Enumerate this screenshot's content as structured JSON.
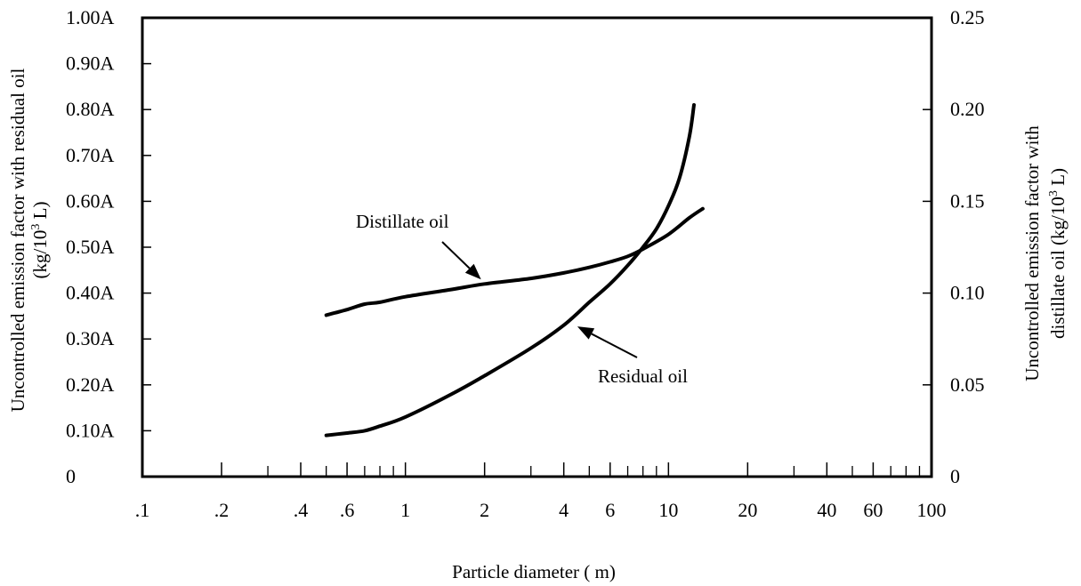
{
  "chart_data": {
    "type": "line",
    "x_scale": "log",
    "xlim": [
      0.1,
      100
    ],
    "ylim_left": [
      0,
      1.0
    ],
    "ylim_right": [
      0,
      0.25
    ],
    "grid": false,
    "xlabel": "Particle diameter (   m)",
    "ylabel_left": {
      "line1": "Uncontrolled emission factor with residual oil",
      "line2_pre": "(kg/10",
      "line2_sup": "3",
      "line2_post": " L)"
    },
    "ylabel_right": {
      "line1": "Uncontrolled emission factor with",
      "line2_pre": "distillate oil (kg/10",
      "line2_sup": "3",
      "line2_post": " L)"
    },
    "x_ticks": [
      {
        "value": 0.1,
        "label": ".1"
      },
      {
        "value": 0.2,
        "label": ".2"
      },
      {
        "value": 0.4,
        "label": ".4"
      },
      {
        "value": 0.6,
        "label": ".6"
      },
      {
        "value": 1,
        "label": "1"
      },
      {
        "value": 2,
        "label": "2"
      },
      {
        "value": 4,
        "label": "4"
      },
      {
        "value": 6,
        "label": "6"
      },
      {
        "value": 10,
        "label": "10"
      },
      {
        "value": 20,
        "label": "20"
      },
      {
        "value": 40,
        "label": "40"
      },
      {
        "value": 60,
        "label": "60"
      },
      {
        "value": 100,
        "label": "100"
      }
    ],
    "x_minor_ticks": [
      0.3,
      0.5,
      0.7,
      0.8,
      0.9,
      3,
      5,
      7,
      8,
      9,
      30,
      50,
      70,
      80,
      90
    ],
    "y_left_ticks": [
      {
        "value": 0,
        "label": "0"
      },
      {
        "value": 0.1,
        "label": "0.10A"
      },
      {
        "value": 0.2,
        "label": "0.20A"
      },
      {
        "value": 0.3,
        "label": "0.30A"
      },
      {
        "value": 0.4,
        "label": "0.40A"
      },
      {
        "value": 0.5,
        "label": "0.50A"
      },
      {
        "value": 0.6,
        "label": "0.60A"
      },
      {
        "value": 0.7,
        "label": "0.70A"
      },
      {
        "value": 0.8,
        "label": "0.80A"
      },
      {
        "value": 0.9,
        "label": "0.90A"
      },
      {
        "value": 1.0,
        "label": "1.00A"
      }
    ],
    "y_right_ticks": [
      {
        "value": 0,
        "label": "0"
      },
      {
        "value": 0.05,
        "label": "0.05"
      },
      {
        "value": 0.1,
        "label": "0.10"
      },
      {
        "value": 0.15,
        "label": "0.15"
      },
      {
        "value": 0.2,
        "label": "0.20"
      },
      {
        "value": 0.25,
        "label": "0.25"
      }
    ],
    "series": [
      {
        "name": "Distillate oil",
        "axis": "right",
        "x": [
          0.5,
          0.6,
          0.7,
          0.8,
          1.0,
          1.5,
          2,
          3,
          4,
          5,
          6,
          7,
          8,
          10,
          12,
          13.5
        ],
        "y": [
          0.088,
          0.091,
          0.094,
          0.095,
          0.098,
          0.102,
          0.105,
          0.108,
          0.111,
          0.114,
          0.117,
          0.12,
          0.124,
          0.132,
          0.141,
          0.146
        ]
      },
      {
        "name": "Residual oil",
        "axis": "left",
        "x": [
          0.5,
          0.6,
          0.7,
          0.8,
          1.0,
          1.5,
          2,
          3,
          4,
          5,
          6,
          7,
          8,
          9,
          10,
          11,
          12,
          12.5
        ],
        "y": [
          0.09,
          0.095,
          0.1,
          0.11,
          0.13,
          0.18,
          0.22,
          0.28,
          0.33,
          0.38,
          0.42,
          0.46,
          0.5,
          0.54,
          0.59,
          0.65,
          0.74,
          0.81
        ]
      }
    ],
    "annotations": {
      "distillate": {
        "text": "Distillate oil",
        "arrow_to_x": 2.0,
        "arrow_to_y_right": 0.105
      },
      "residual": {
        "text": "Residual oil",
        "arrow_to_x": 4.4,
        "arrow_to_y_left": 0.335
      }
    }
  }
}
